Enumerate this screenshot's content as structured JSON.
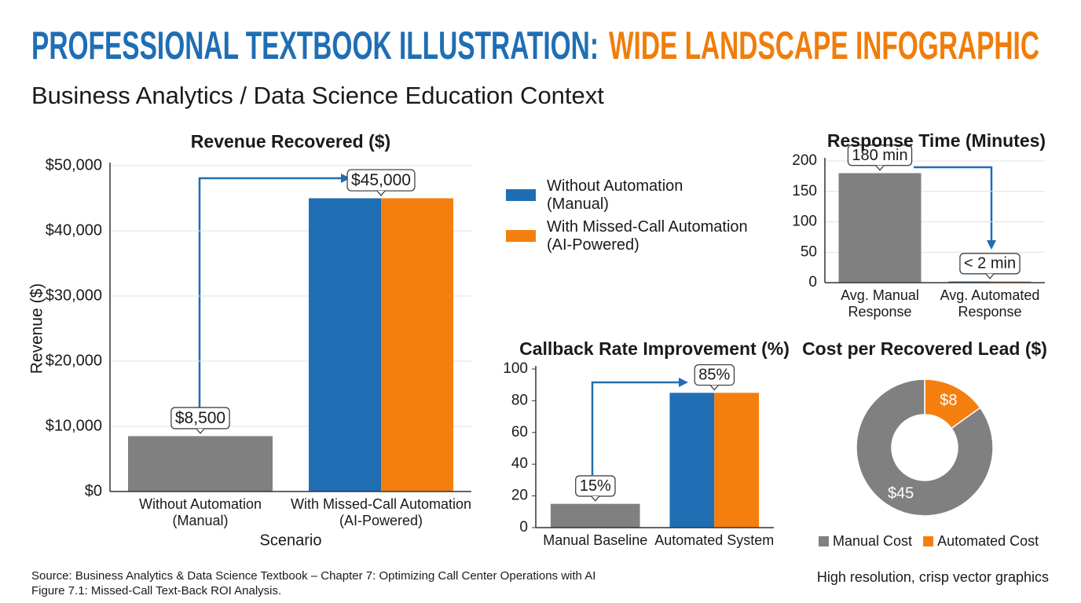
{
  "header": {
    "title_part1": "PROFESSIONAL TEXTBOOK ILLUSTRATION:",
    "title_part2": "WIDE LANDSCAPE INFOGRAPHIC",
    "subtitle": "Business Analytics / Data Science Education Context"
  },
  "legend": {
    "entries": [
      {
        "label": "Without Automation\n(Manual)",
        "color": "#1f6eb4"
      },
      {
        "label": "With Missed-Call Automation\n(AI-Powered)",
        "color": "#f57f0e"
      }
    ]
  },
  "footer": {
    "source": "Source: Business Analytics & Data Science Textbook – Chapter 7: Optimizing Call Center Operations with AI",
    "figure": "Figure 7.1: Missed-Call Text-Back ROI Analysis.",
    "note": "High resolution, crisp vector graphics"
  },
  "chart_data": [
    {
      "type": "bar",
      "title": "Revenue Recovered ($)",
      "x_label": "Scenario",
      "y_label": "Revenue ($)",
      "categories": [
        "Without Automation\n(Manual)",
        "With Missed-Call Automation\n(AI-Powered)"
      ],
      "values": [
        8500,
        45000
      ],
      "value_labels": [
        "$8,500",
        "$45,000"
      ],
      "colors": [
        "#808080",
        [
          "#1f6eb4",
          "#f57f0e"
        ]
      ],
      "ylim": [
        0,
        50000
      ],
      "yticks": [
        {
          "value": 0,
          "label": "$0"
        },
        {
          "value": 10000,
          "label": "$10,000"
        },
        {
          "value": 20000,
          "label": "$20,000"
        },
        {
          "value": 30000,
          "label": "$30,000"
        },
        {
          "value": 40000,
          "label": "$40,000"
        },
        {
          "value": 50000,
          "label": "$50,000"
        }
      ],
      "grid": true
    },
    {
      "type": "bar",
      "title": "Callback Rate Improvement (%)",
      "categories": [
        "Manual Baseline",
        "Automated System"
      ],
      "values": [
        15,
        85
      ],
      "value_labels": [
        "15%",
        "85%"
      ],
      "colors": [
        "#808080",
        [
          "#1f6eb4",
          "#f57f0e"
        ]
      ],
      "ylim": [
        0,
        100
      ],
      "yticks": [
        0,
        20,
        40,
        60,
        80,
        100
      ],
      "grid": false
    },
    {
      "type": "bar",
      "title": "Response Time (Minutes)",
      "categories": [
        "Avg. Manual\nResponse",
        "Avg. Automated\nResponse"
      ],
      "values": [
        180,
        2
      ],
      "value_labels": [
        "180 min",
        "< 2 min"
      ],
      "colors": [
        "#808080",
        [
          "#1f6eb4",
          "#f57f0e"
        ]
      ],
      "ylim": [
        0,
        200
      ],
      "yticks": [
        0,
        50,
        100,
        150,
        200
      ],
      "grid": true
    },
    {
      "type": "pie",
      "title": "Cost per Recovered Lead ($)",
      "donut": true,
      "categories": [
        "Manual Cost",
        "Automated Cost"
      ],
      "values": [
        45,
        8
      ],
      "value_labels": [
        "$45",
        "$8"
      ],
      "colors": [
        "#808080",
        "#f57f0e"
      ]
    }
  ]
}
